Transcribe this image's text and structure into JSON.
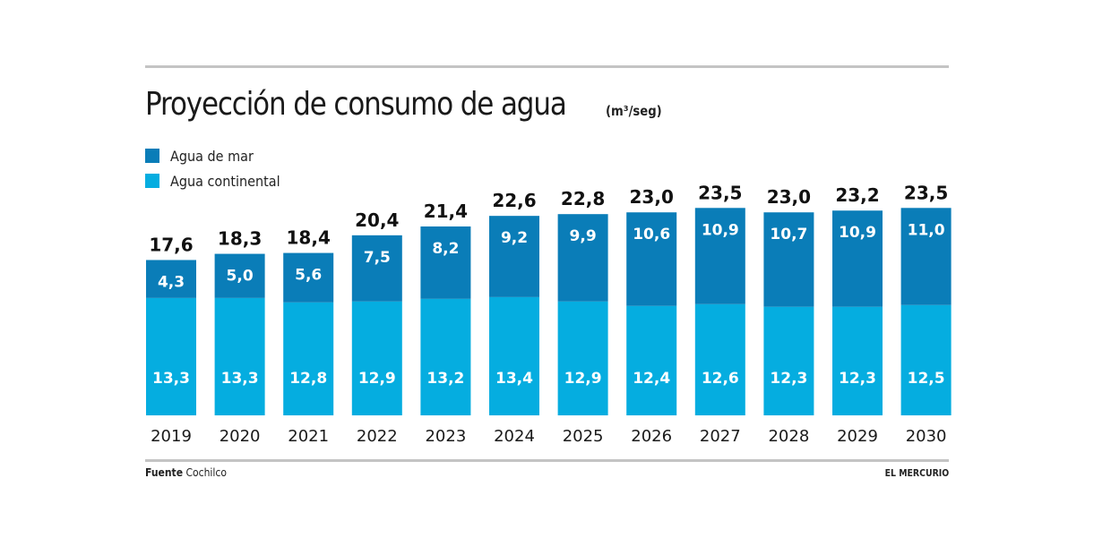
{
  "header": {
    "title": "Proyección de consumo de agua",
    "unit": "(m³/seg)"
  },
  "legend": [
    {
      "label": "Agua de mar",
      "color": "#0a7db8"
    },
    {
      "label": "Agua continental",
      "color": "#05ade0"
    }
  ],
  "footer": {
    "source_label": "Fuente",
    "source_value": "Cochilco",
    "brand": "EL MERCURIO"
  },
  "chart_data": {
    "type": "bar",
    "stacked": true,
    "title": "Proyección de consumo de agua",
    "subtitle": "(m³/seg)",
    "xlabel": "",
    "ylabel": "",
    "grid": false,
    "legend_position": "top-left",
    "ylim": [
      0,
      23.5
    ],
    "categories": [
      "2019",
      "2020",
      "2021",
      "2022",
      "2023",
      "2024",
      "2025",
      "2026",
      "2027",
      "2028",
      "2029",
      "2030"
    ],
    "series": [
      {
        "name": "Agua continental",
        "color": "#05ade0",
        "values": [
          13.3,
          13.3,
          12.8,
          12.9,
          13.2,
          13.4,
          12.9,
          12.4,
          12.6,
          12.3,
          12.3,
          12.5
        ],
        "labels": [
          "13,3",
          "13,3",
          "12,8",
          "12,9",
          "13,2",
          "13,4",
          "12,9",
          "12,4",
          "12,6",
          "12,3",
          "12,3",
          "12,5"
        ]
      },
      {
        "name": "Agua de mar",
        "color": "#0a7db8",
        "values": [
          4.3,
          5.0,
          5.6,
          7.5,
          8.2,
          9.2,
          9.9,
          10.6,
          10.9,
          10.7,
          10.9,
          11.0
        ],
        "labels": [
          "4,3",
          "5,0",
          "5,6",
          "7,5",
          "8,2",
          "9,2",
          "9,9",
          "10,6",
          "10,9",
          "10,7",
          "10,9",
          "11,0"
        ]
      }
    ],
    "totals": [
      17.6,
      18.3,
      18.4,
      20.4,
      21.4,
      22.6,
      22.8,
      23.0,
      23.5,
      23.0,
      23.2,
      23.5
    ],
    "total_labels": [
      "17,6",
      "18,3",
      "18,4",
      "20,4",
      "21,4",
      "22,6",
      "22,8",
      "23,0",
      "23,5",
      "23,0",
      "23,2",
      "23,5"
    ]
  }
}
